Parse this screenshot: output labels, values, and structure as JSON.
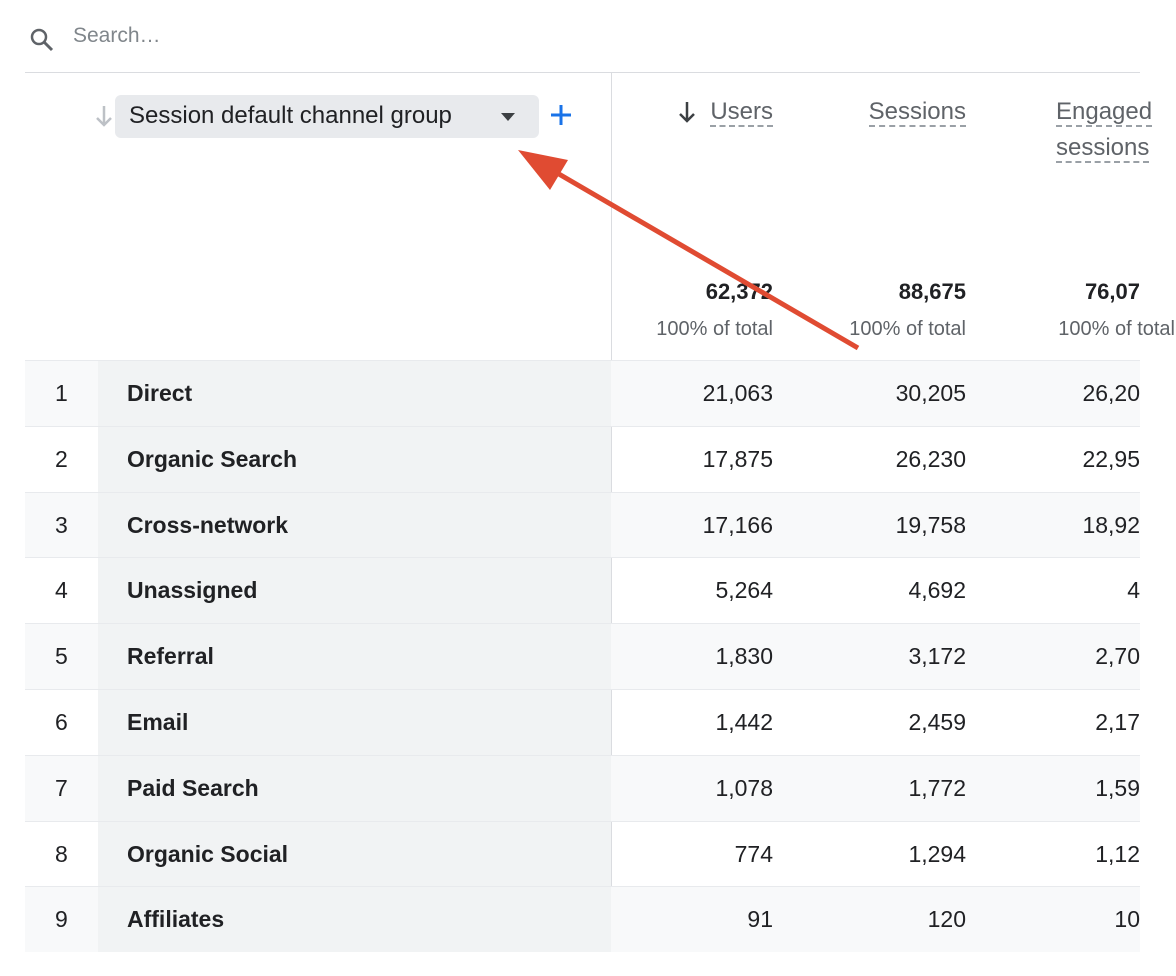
{
  "search": {
    "placeholder": "Search…"
  },
  "table": {
    "dimension_header": "Session default channel group",
    "columns": [
      "Users",
      "Sessions",
      "Engaged sessions"
    ],
    "totals": [
      "62,372",
      "88,675",
      "76,07"
    ],
    "totals_note": [
      "100% of total",
      "100% of total",
      "100% of total"
    ],
    "rows": [
      [
        "1",
        "Direct",
        "21,063",
        "30,205",
        "26,20"
      ],
      [
        "2",
        "Organic Search",
        "17,875",
        "26,230",
        "22,95"
      ],
      [
        "3",
        "Cross-network",
        "17,166",
        "19,758",
        "18,92"
      ],
      [
        "4",
        "Unassigned",
        "5,264",
        "4,692",
        "4"
      ],
      [
        "5",
        "Referral",
        "1,830",
        "3,172",
        "2,70"
      ],
      [
        "6",
        "Email",
        "1,442",
        "2,459",
        "2,17"
      ],
      [
        "7",
        "Paid Search",
        "1,078",
        "1,772",
        "1,59"
      ],
      [
        "8",
        "Organic Social",
        "774",
        "1,294",
        "1,12"
      ],
      [
        "9",
        "Affiliates",
        "91",
        "120",
        "10"
      ]
    ]
  }
}
